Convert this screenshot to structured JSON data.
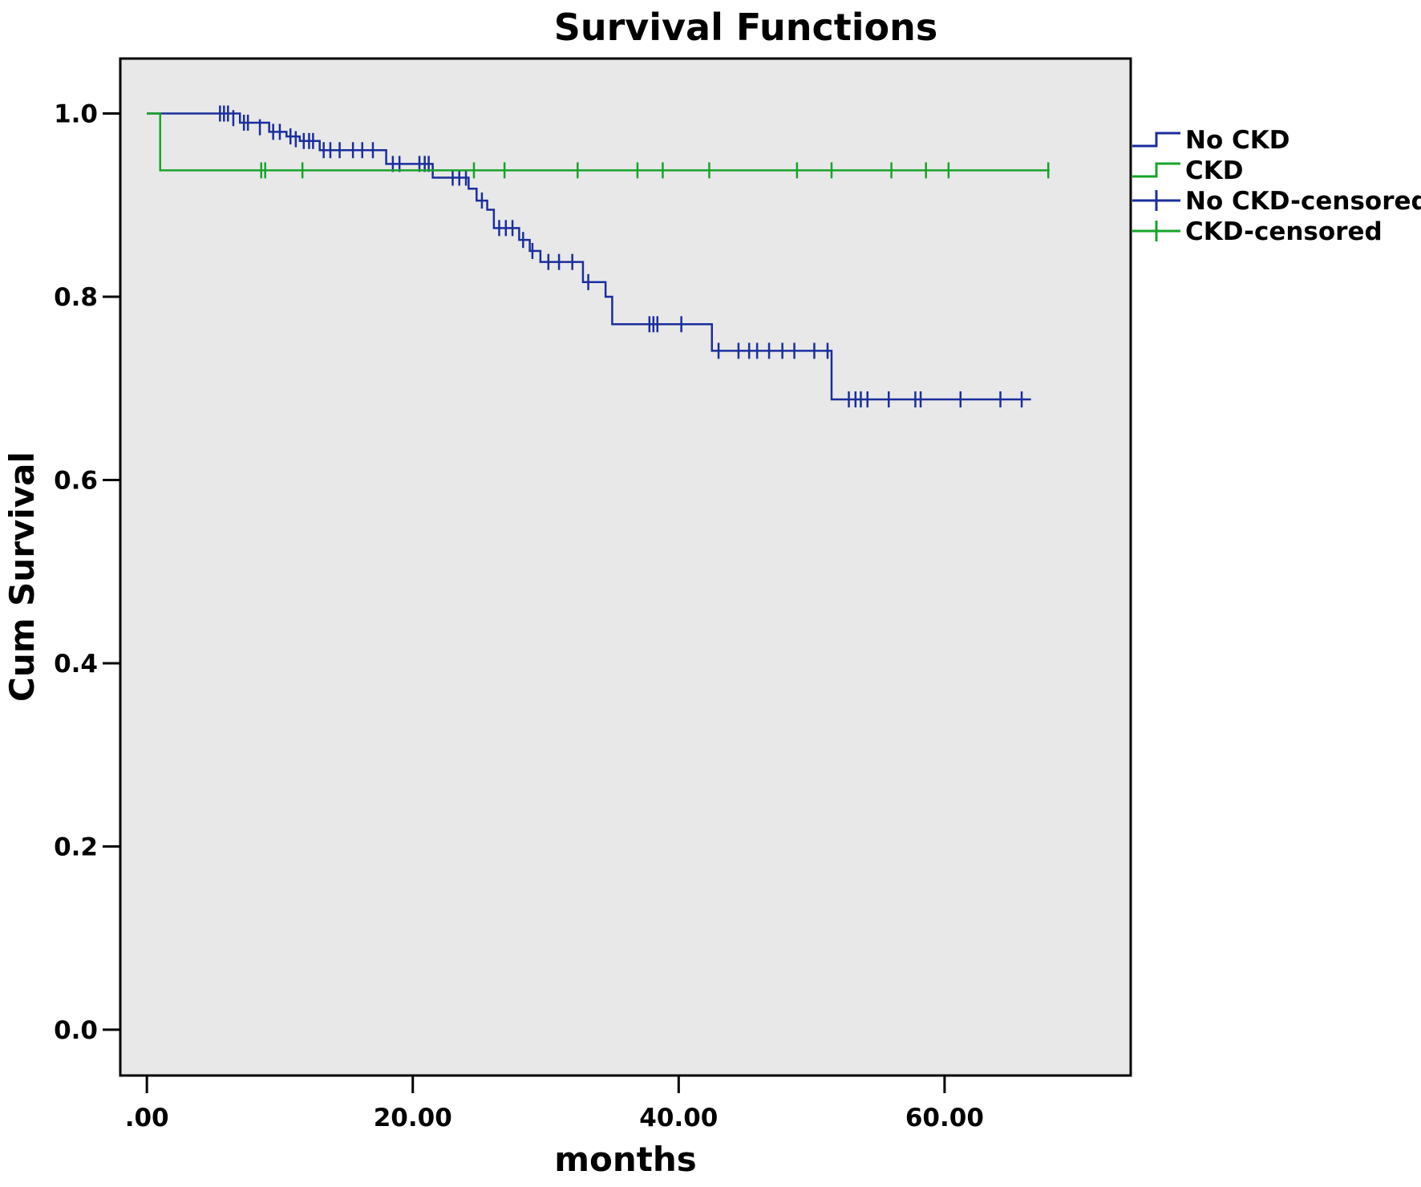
{
  "chart_data": {
    "type": "line",
    "subtype": "kaplan-meier step curve",
    "title": "Survival Functions",
    "xlabel": "months",
    "ylabel": "Cum Survival",
    "xlim": [
      -2,
      74
    ],
    "ylim": [
      -0.05,
      1.06
    ],
    "xticks": [
      0,
      20,
      40,
      60
    ],
    "xtick_labels": [
      ".00",
      "20.00",
      "40.00",
      "60.00"
    ],
    "yticks": [
      0,
      0.2,
      0.4,
      0.6,
      0.8,
      1.0
    ],
    "ytick_labels": [
      "0.0",
      "0.2",
      "0.4",
      "0.6",
      "0.8",
      "1.0"
    ],
    "grid": false,
    "plot_background": "#e8e8e8",
    "legend_position": "right",
    "legend": [
      {
        "label": "No CKD",
        "kind": "step",
        "color": "#1a2e9c"
      },
      {
        "label": "CKD",
        "kind": "step",
        "color": "#17a32a"
      },
      {
        "label": "No CKD-censored",
        "kind": "censor",
        "color": "#1a2e9c"
      },
      {
        "label": "CKD-censored",
        "kind": "censor",
        "color": "#17a32a"
      }
    ],
    "series": [
      {
        "name": "No CKD",
        "color": "#1a2e9c",
        "steps": [
          [
            0,
            1.0
          ],
          [
            7.0,
            0.99
          ],
          [
            9.2,
            0.98
          ],
          [
            10.5,
            0.975
          ],
          [
            11.5,
            0.97
          ],
          [
            13.0,
            0.96
          ],
          [
            18.0,
            0.945
          ],
          [
            21.5,
            0.93
          ],
          [
            24.2,
            0.918
          ],
          [
            24.8,
            0.905
          ],
          [
            25.6,
            0.895
          ],
          [
            26.1,
            0.875
          ],
          [
            28.0,
            0.862
          ],
          [
            28.8,
            0.85
          ],
          [
            29.6,
            0.838
          ],
          [
            32.8,
            0.816
          ],
          [
            34.5,
            0.8
          ],
          [
            35.0,
            0.77
          ],
          [
            42.5,
            0.741
          ],
          [
            51.5,
            0.688
          ],
          [
            66.5,
            0.688
          ]
        ],
        "censored": [
          [
            5.5,
            1.0
          ],
          [
            5.8,
            1.0
          ],
          [
            6.1,
            1.0
          ],
          [
            6.5,
            0.995
          ],
          [
            7.3,
            0.99
          ],
          [
            7.6,
            0.99
          ],
          [
            8.5,
            0.985
          ],
          [
            9.5,
            0.98
          ],
          [
            10.0,
            0.98
          ],
          [
            10.8,
            0.975
          ],
          [
            11.2,
            0.972
          ],
          [
            11.8,
            0.97
          ],
          [
            12.2,
            0.97
          ],
          [
            12.5,
            0.97
          ],
          [
            13.3,
            0.96
          ],
          [
            13.8,
            0.96
          ],
          [
            14.5,
            0.96
          ],
          [
            15.5,
            0.96
          ],
          [
            16.2,
            0.96
          ],
          [
            17.0,
            0.96
          ],
          [
            18.5,
            0.945
          ],
          [
            19.0,
            0.945
          ],
          [
            20.5,
            0.945
          ],
          [
            20.9,
            0.945
          ],
          [
            21.2,
            0.945
          ],
          [
            23.0,
            0.93
          ],
          [
            23.5,
            0.93
          ],
          [
            24.0,
            0.93
          ],
          [
            25.2,
            0.905
          ],
          [
            26.5,
            0.875
          ],
          [
            27.0,
            0.875
          ],
          [
            27.5,
            0.875
          ],
          [
            28.3,
            0.862
          ],
          [
            29.0,
            0.85
          ],
          [
            30.2,
            0.838
          ],
          [
            31.0,
            0.838
          ],
          [
            32.0,
            0.838
          ],
          [
            33.2,
            0.816
          ],
          [
            37.8,
            0.77
          ],
          [
            38.1,
            0.77
          ],
          [
            38.4,
            0.77
          ],
          [
            40.2,
            0.77
          ],
          [
            43.0,
            0.741
          ],
          [
            44.5,
            0.741
          ],
          [
            45.3,
            0.741
          ],
          [
            45.9,
            0.741
          ],
          [
            46.8,
            0.741
          ],
          [
            47.8,
            0.741
          ],
          [
            48.7,
            0.741
          ],
          [
            50.2,
            0.741
          ],
          [
            51.2,
            0.741
          ],
          [
            52.8,
            0.688
          ],
          [
            53.3,
            0.688
          ],
          [
            53.7,
            0.688
          ],
          [
            54.2,
            0.688
          ],
          [
            55.8,
            0.688
          ],
          [
            57.8,
            0.688
          ],
          [
            58.2,
            0.688
          ],
          [
            61.2,
            0.688
          ],
          [
            64.2,
            0.688
          ],
          [
            65.8,
            0.688
          ]
        ]
      },
      {
        "name": "CKD",
        "color": "#17a32a",
        "steps": [
          [
            0,
            1.0
          ],
          [
            1.0,
            0.938
          ],
          [
            67.9,
            0.938
          ]
        ],
        "censored": [
          [
            8.6,
            0.938
          ],
          [
            8.9,
            0.938
          ],
          [
            11.7,
            0.938
          ],
          [
            24.6,
            0.938
          ],
          [
            26.9,
            0.938
          ],
          [
            32.4,
            0.938
          ],
          [
            36.9,
            0.938
          ],
          [
            38.8,
            0.938
          ],
          [
            42.3,
            0.938
          ],
          [
            48.9,
            0.938
          ],
          [
            51.5,
            0.938
          ],
          [
            56.0,
            0.938
          ],
          [
            58.6,
            0.938
          ],
          [
            60.3,
            0.938
          ],
          [
            67.8,
            0.938
          ]
        ]
      }
    ]
  }
}
